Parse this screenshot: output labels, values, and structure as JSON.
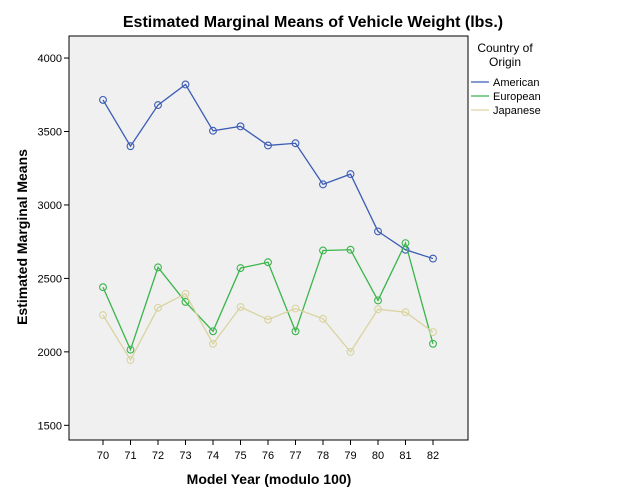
{
  "chart_data": {
    "type": "line",
    "title": "Estimated Marginal Means of Vehicle Weight (lbs.)",
    "xlabel": "Model Year (modulo 100)",
    "ylabel": "Estimated Marginal Means",
    "categories": [
      "70",
      "71",
      "72",
      "73",
      "74",
      "75",
      "76",
      "77",
      "78",
      "79",
      "80",
      "81",
      "82"
    ],
    "ylim": [
      1400,
      4150
    ],
    "yticks": [
      1500,
      2000,
      2500,
      3000,
      3500,
      4000
    ],
    "ytick_labels": [
      "1500",
      "2000",
      "2500",
      "3000",
      "3500",
      "4000"
    ],
    "legend_title": "Country of Origin",
    "legend_title_lines": [
      "Country of",
      "Origin"
    ],
    "legend_position": "right",
    "series": [
      {
        "name": "American",
        "color": "#3b5cb5",
        "values": [
          3715,
          3400,
          3680,
          3820,
          3505,
          3535,
          3405,
          3420,
          3140,
          3210,
          2820,
          2695,
          2635
        ]
      },
      {
        "name": "European",
        "color": "#3ab54a",
        "values": [
          2440,
          2015,
          2575,
          2340,
          2140,
          2570,
          2610,
          2140,
          2690,
          2695,
          2350,
          2740,
          2055
        ]
      },
      {
        "name": "Japanese",
        "color": "#d9d4a0",
        "values": [
          2250,
          1945,
          2300,
          2395,
          2055,
          2305,
          2220,
          2295,
          2225,
          2000,
          2290,
          2270,
          2135
        ]
      }
    ]
  }
}
